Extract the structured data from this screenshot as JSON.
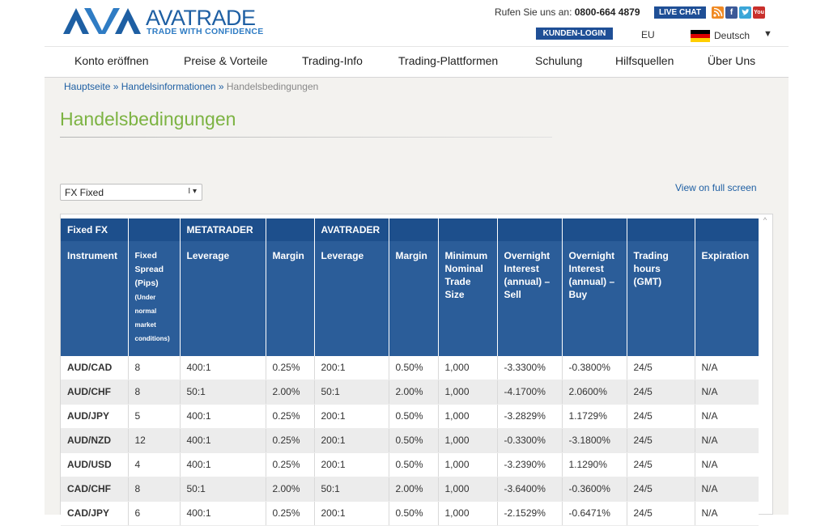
{
  "header": {
    "logo_name": "AVATRADE",
    "logo_tagline": "TRADE WITH CONFIDENCE",
    "phone_label": "Rufen Sie uns an:",
    "phone_number": "0800-664 4879",
    "live_chat": "LIVE CHAT",
    "login": "KUNDEN-LOGIN",
    "region": "EU",
    "language": "Deutsch",
    "language_arrow": "▼",
    "social": [
      "rss-icon",
      "facebook-icon",
      "twitter-icon",
      "youtube-icon"
    ],
    "youtube_label": "You Tube"
  },
  "nav": {
    "items": [
      "Konto eröffnen",
      "Preise & Vorteile",
      "Trading-Info",
      "Trading-Plattformen",
      "Schulung",
      "Hilfsquellen",
      "Über Uns"
    ]
  },
  "breadcrumb": {
    "home": "Hauptseite",
    "separator": "»",
    "section": "Handelsinformationen",
    "current": "Handelsbedingungen"
  },
  "page": {
    "title": "Handelsbedingungen",
    "select_value": "FX Fixed",
    "select_caret": "I ▾",
    "fullscreen_link": "View on full screen",
    "scroll_up": "^"
  },
  "table": {
    "groups": {
      "fixed_fx": "Fixed FX",
      "metatrader": "METATRADER",
      "avatrader": "AVATRADER"
    },
    "columns": {
      "instrument": "Instrument",
      "spread_1": "Fixed",
      "spread_2": "Spread",
      "spread_3": "(Pips)",
      "spread_4": "(Under",
      "spread_5": "normal",
      "spread_6": "market",
      "spread_7": "conditions)",
      "mt_leverage": "Leverage",
      "mt_margin": "Margin",
      "ava_leverage": "Leverage",
      "ava_margin": "Margin",
      "min_trade_1": "Minimum",
      "min_trade_2": "Nominal",
      "min_trade_3": "Trade",
      "min_trade_4": "Size",
      "on_sell_1": "Overnight",
      "on_sell_2": "Interest",
      "on_sell_3": "(annual) –",
      "on_sell_4": "Sell",
      "on_buy_1": "Overnight",
      "on_buy_2": "Interest",
      "on_buy_3": "(annual) –",
      "on_buy_4": "Buy",
      "hours_1": "Trading",
      "hours_2": "hours",
      "hours_3": "(GMT)",
      "expiration": "Expiration"
    },
    "rows": [
      [
        "AUD/CAD",
        "8",
        "400:1",
        "0.25%",
        "200:1",
        "0.50%",
        "1,000",
        "-3.3300%",
        "-0.3800%",
        "24/5",
        "N/A"
      ],
      [
        "AUD/CHF",
        "8",
        "50:1",
        "2.00%",
        "50:1",
        "2.00%",
        "1,000",
        "-4.1700%",
        "2.0600%",
        "24/5",
        "N/A"
      ],
      [
        "AUD/JPY",
        "5",
        "400:1",
        "0.25%",
        "200:1",
        "0.50%",
        "1,000",
        "-3.2829%",
        "1.1729%",
        "24/5",
        "N/A"
      ],
      [
        "AUD/NZD",
        "12",
        "400:1",
        "0.25%",
        "200:1",
        "0.50%",
        "1,000",
        "-0.3300%",
        "-3.1800%",
        "24/5",
        "N/A"
      ],
      [
        "AUD/USD",
        "4",
        "400:1",
        "0.25%",
        "200:1",
        "0.50%",
        "1,000",
        "-3.2390%",
        "1.1290%",
        "24/5",
        "N/A"
      ],
      [
        "CAD/CHF",
        "8",
        "50:1",
        "2.00%",
        "50:1",
        "2.00%",
        "1,000",
        "-3.6400%",
        "-0.3600%",
        "24/5",
        "N/A"
      ],
      [
        "CAD/JPY",
        "6",
        "400:1",
        "0.25%",
        "200:1",
        "0.50%",
        "1,000",
        "-2.1529%",
        "-0.6471%",
        "24/5",
        "N/A"
      ]
    ]
  },
  "colors": {
    "brand_blue": "#1e5fa3",
    "title_green": "#7cb342",
    "table_header_dark": "#1d4f8c",
    "table_header": "#2b5d99"
  }
}
